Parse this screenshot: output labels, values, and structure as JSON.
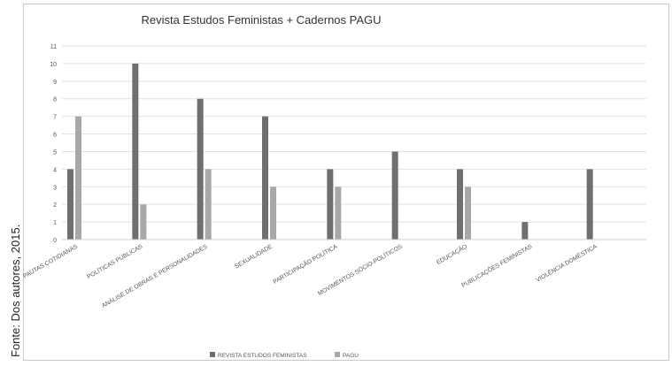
{
  "source_note": "Fonte: Dos autores, 2015.",
  "colors": {
    "series1": "#6f6f6f",
    "series2": "#a8a8a8",
    "grid": "#e2e2e2"
  },
  "chart_data": {
    "type": "bar",
    "title": "Revista Estudos Feministas + Cadernos PAGU",
    "categories": [
      "PAUTAS COTIDIANAS",
      "POLÍTICAS PÚBLICAS",
      "ANÁLISE DE OBRAS E PERSONALIDADES",
      "SEXUALIDADE",
      "PARTICIPAÇÃO POLÍTICA",
      "MOVIMENTOS SÓCIO-POLÍTICOS",
      "EDUCAÇÃO",
      "PUBLICAÇÕES FEMINISTAS",
      "VIOLÊNCIA DOMÉSTICA"
    ],
    "series": [
      {
        "name": "REVISTA ESTUDOS FEMINISTAS",
        "values": [
          4,
          10,
          8,
          7,
          4,
          5,
          4,
          1,
          4
        ]
      },
      {
        "name": "PAGU",
        "values": [
          7,
          2,
          4,
          3,
          3,
          0,
          3,
          0,
          0
        ]
      }
    ],
    "ylim": [
      0,
      11
    ],
    "yticks": [
      0,
      1,
      2,
      3,
      4,
      5,
      6,
      7,
      8,
      9,
      10,
      11
    ],
    "grid": true,
    "legend_position": "bottom"
  }
}
